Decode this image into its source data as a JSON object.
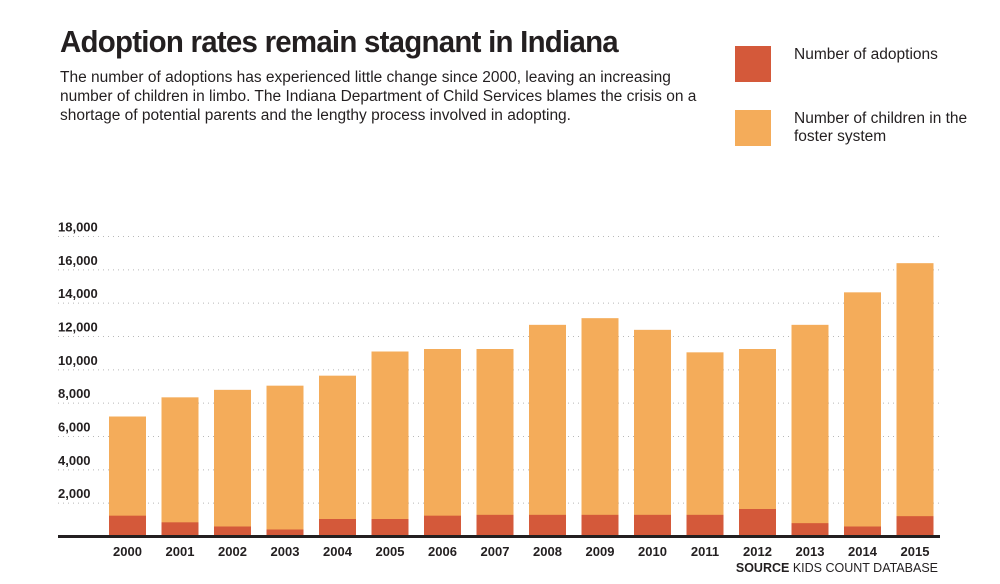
{
  "title": "Adoption rates remain stagnant in Indiana",
  "subtitle": "The number of adoptions has experienced little change since 2000, leaving an increasing number of children in limbo. The Indiana Department of Child Services blames the crisis on a shortage of potential parents and the lengthy process involved in adopting.",
  "source_label": "SOURCE",
  "source_text": "KIDS COUNT DATABASE",
  "colors": {
    "adoptions": "#d4593a",
    "foster": "#f4ac5a"
  },
  "chart_data": {
    "type": "bar",
    "stacked": "overlapping",
    "categories": [
      "2000",
      "2001",
      "2002",
      "2003",
      "2004",
      "2005",
      "2006",
      "2007",
      "2008",
      "2009",
      "2010",
      "2011",
      "2012",
      "2013",
      "2014",
      "2015"
    ],
    "series": [
      {
        "name": "Number of children in the foster system",
        "values": [
          7200,
          8350,
          8800,
          9050,
          9650,
          11100,
          11250,
          11250,
          12700,
          13100,
          12400,
          11050,
          11250,
          12700,
          14650,
          16400
        ]
      },
      {
        "name": "Number of adoptions",
        "values": [
          1250,
          850,
          600,
          420,
          1050,
          1050,
          1250,
          1300,
          1300,
          1300,
          1300,
          1300,
          1650,
          800,
          600,
          1220
        ]
      }
    ],
    "yticks": [
      "2,000",
      "4,000",
      "6,000",
      "8,000",
      "10,000",
      "12,000",
      "14,000",
      "16,000",
      "18,000"
    ],
    "ylim": [
      0,
      18000
    ],
    "grid": true,
    "legend": "top-right"
  }
}
